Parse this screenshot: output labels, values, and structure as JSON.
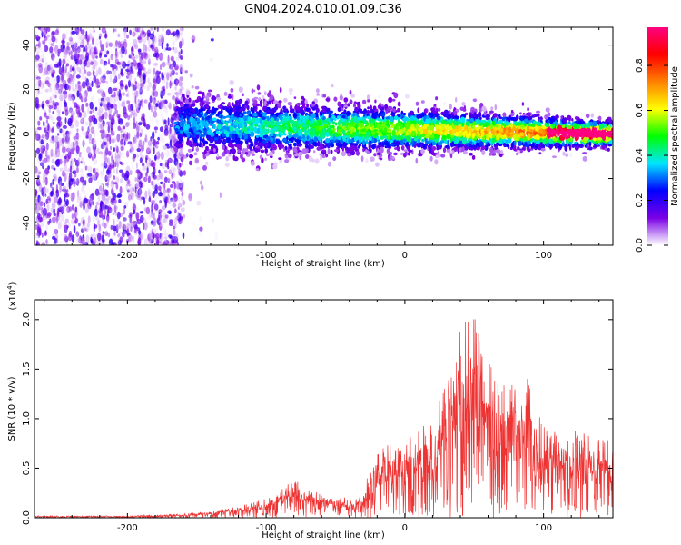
{
  "title": "GN04.2024.010.01.09.C36",
  "chart_data": [
    {
      "type": "heatmap",
      "xlabel": "Height of straight line (km)",
      "ylabel": "Frequency (Hz)",
      "xlim": [
        -267,
        150
      ],
      "ylim": [
        -50,
        48
      ],
      "xticks": [
        -200,
        -100,
        0,
        100
      ],
      "yticks": [
        -40,
        -20,
        0,
        20,
        40
      ],
      "xtick_labels": [
        "-200",
        "-100",
        "0",
        "100"
      ],
      "ytick_labels": [
        "-40",
        "-20",
        "0",
        "20",
        "40"
      ],
      "colorbar": {
        "label": "Normalized spectral amplitude",
        "range": [
          0,
          0.97
        ],
        "ticks": [
          0.0,
          0.2,
          0.4,
          0.6,
          0.8
        ],
        "tick_labels": [
          "0.0",
          "0.2",
          "0.4",
          "0.6",
          "0.8"
        ],
        "colormap": [
          "#ffffff",
          "#7a00e6",
          "#0000ff",
          "#00e5ff",
          "#00ff00",
          "#ffff00",
          "#ff8000",
          "#ff0000",
          "#ff0080"
        ]
      },
      "grid": false
    },
    {
      "type": "line",
      "xlabel": "Height of straight line (km)",
      "ylabel": "SNR (10 * v/v)",
      "scale_label": "(x10",
      "scale_exponent": "4",
      "scale_close": ")",
      "xlim": [
        -267,
        150
      ],
      "ylim": [
        0,
        2.2
      ],
      "xticks": [
        -200,
        -100,
        0,
        100
      ],
      "yticks": [
        0.0,
        0.5,
        1.0,
        1.5,
        2.0
      ],
      "xtick_labels": [
        "-200",
        "-100",
        "0",
        "100"
      ],
      "ytick_labels": [
        "0.0",
        "0.5",
        "1.0",
        "1.5",
        "2.0"
      ],
      "series_color": "#ee3333",
      "envelope_x": [
        -267,
        -200,
        -160,
        -140,
        -120,
        -100,
        -90,
        -80,
        -70,
        -60,
        -50,
        -40,
        -30,
        -25,
        -20,
        -10,
        0,
        10,
        20,
        30,
        35,
        40,
        45,
        50,
        55,
        60,
        70,
        80,
        85,
        90,
        95,
        100,
        110,
        120,
        130,
        140,
        150
      ],
      "envelope_y": [
        0.02,
        0.02,
        0.04,
        0.07,
        0.12,
        0.2,
        0.28,
        0.4,
        0.3,
        0.25,
        0.22,
        0.2,
        0.22,
        0.55,
        0.7,
        0.75,
        0.78,
        0.9,
        1.05,
        1.35,
        1.6,
        1.9,
        2.0,
        2.1,
        1.8,
        1.6,
        1.35,
        1.4,
        1.5,
        1.4,
        1.1,
        0.95,
        0.88,
        0.9,
        0.85,
        0.82,
        0.8
      ],
      "grid": false
    }
  ]
}
